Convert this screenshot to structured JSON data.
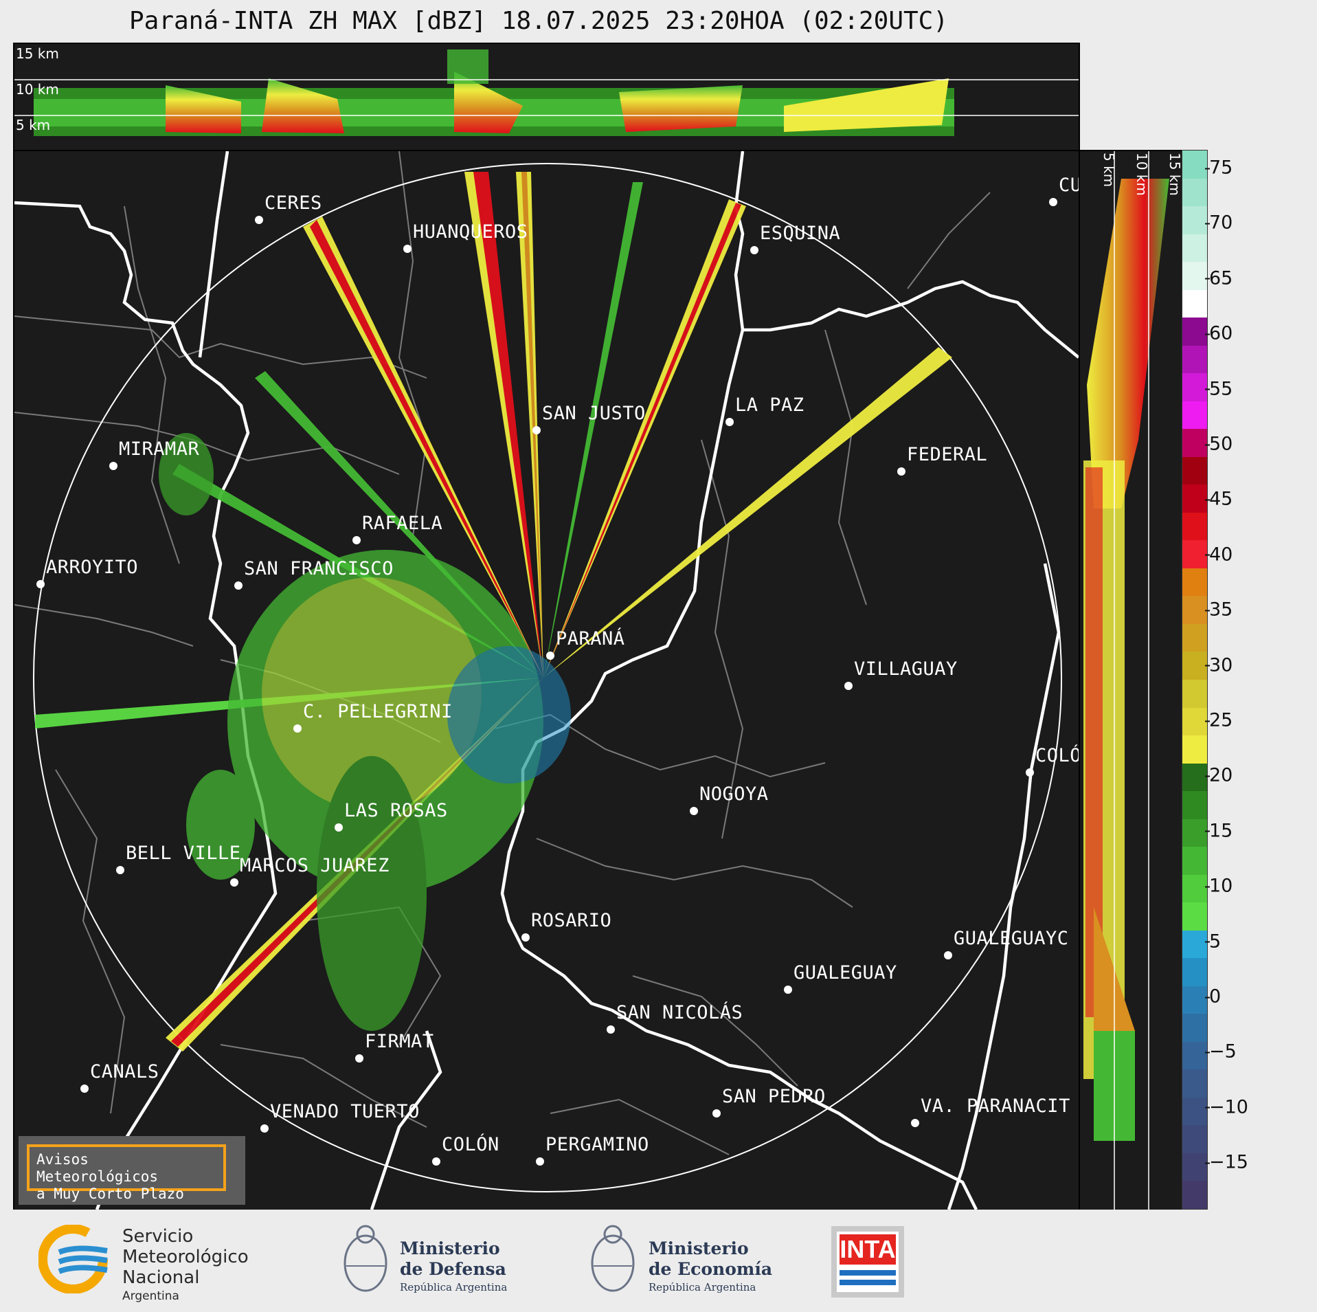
{
  "title": "Paraná-INTA ZH MAX [dBZ] 18.07.2025 23:20HOA (02:20UTC)",
  "top_strip_labels": [
    "15 km",
    "10 km",
    "5 km"
  ],
  "side_strip_labels": [
    "5 km",
    "10 km",
    "15 km"
  ],
  "colorbar": {
    "unit": "dBZ",
    "ticks": [
      "75",
      "70",
      "65",
      "60",
      "55",
      "50",
      "45",
      "40",
      "35",
      "30",
      "25",
      "20",
      "15",
      "10",
      "5",
      "0",
      "−5",
      "−10",
      "−15"
    ],
    "colors": [
      "#86dcc0",
      "#9fe3cc",
      "#b6ead8",
      "#cdf1e3",
      "#e3f7ef",
      "#ffffff",
      "#8b0a8f",
      "#b014b6",
      "#d31ad8",
      "#ef1cf2",
      "#c00060",
      "#a00010",
      "#c0001a",
      "#e0101a",
      "#f02030",
      "#e08010",
      "#d99020",
      "#d0a020",
      "#c8b020",
      "#d2c830",
      "#e0d838",
      "#eeec40",
      "#256e1c",
      "#2f8a22",
      "#3a9e2a",
      "#44b834",
      "#50cc3c",
      "#5cdc44",
      "#2aa8d8",
      "#2490c4",
      "#2a80b4",
      "#2f70a4",
      "#346498",
      "#3a5a8c",
      "#3c5282",
      "#3e4a7a",
      "#404272",
      "#433a6a"
    ]
  },
  "cities": [
    {
      "name": "CERES"
    },
    {
      "name": "HUANQUEROS"
    },
    {
      "name": "ESQUINA"
    },
    {
      "name": "SAN JUSTO"
    },
    {
      "name": "LA PAZ"
    },
    {
      "name": "FEDERAL"
    },
    {
      "name": "MIRAMAR"
    },
    {
      "name": "RAFAELA"
    },
    {
      "name": "ARROYITO"
    },
    {
      "name": "SAN FRANCISCO"
    },
    {
      "name": "PARANÁ"
    },
    {
      "name": "VILLAGUAY"
    },
    {
      "name": "C. PELLEGRINI"
    },
    {
      "name": "COLÓ"
    },
    {
      "name": "NOGOYA"
    },
    {
      "name": "LAS ROSAS"
    },
    {
      "name": "BELL VILLE"
    },
    {
      "name": "MARCOS JUAREZ"
    },
    {
      "name": "ROSARIO"
    },
    {
      "name": "GUALEGUAYC"
    },
    {
      "name": "GUALEGUAY"
    },
    {
      "name": "SAN NICOLÁS"
    },
    {
      "name": "FIRMAT"
    },
    {
      "name": "CANALS"
    },
    {
      "name": "SAN PEDRO"
    },
    {
      "name": "VENADO TUERTO"
    },
    {
      "name": "VA. PARANACIT"
    },
    {
      "name": "COLÓN"
    },
    {
      "name": "PERGAMINO"
    },
    {
      "name": "CU"
    }
  ],
  "alert": {
    "line1": "Avisos Meteorológicos",
    "line2": "a Muy Corto Plazo"
  },
  "footer": {
    "smn": {
      "line1": "Servicio",
      "line2": "Meteorológico",
      "line3": "Nacional",
      "line4": "Argentina"
    },
    "defensa": {
      "line1": "Ministerio",
      "line2": "de Defensa",
      "line3": "República Argentina"
    },
    "economia": {
      "line1": "Ministerio",
      "line2": "de Economía",
      "line3": "República Argentina"
    },
    "inta": {
      "label": "INTA"
    }
  }
}
